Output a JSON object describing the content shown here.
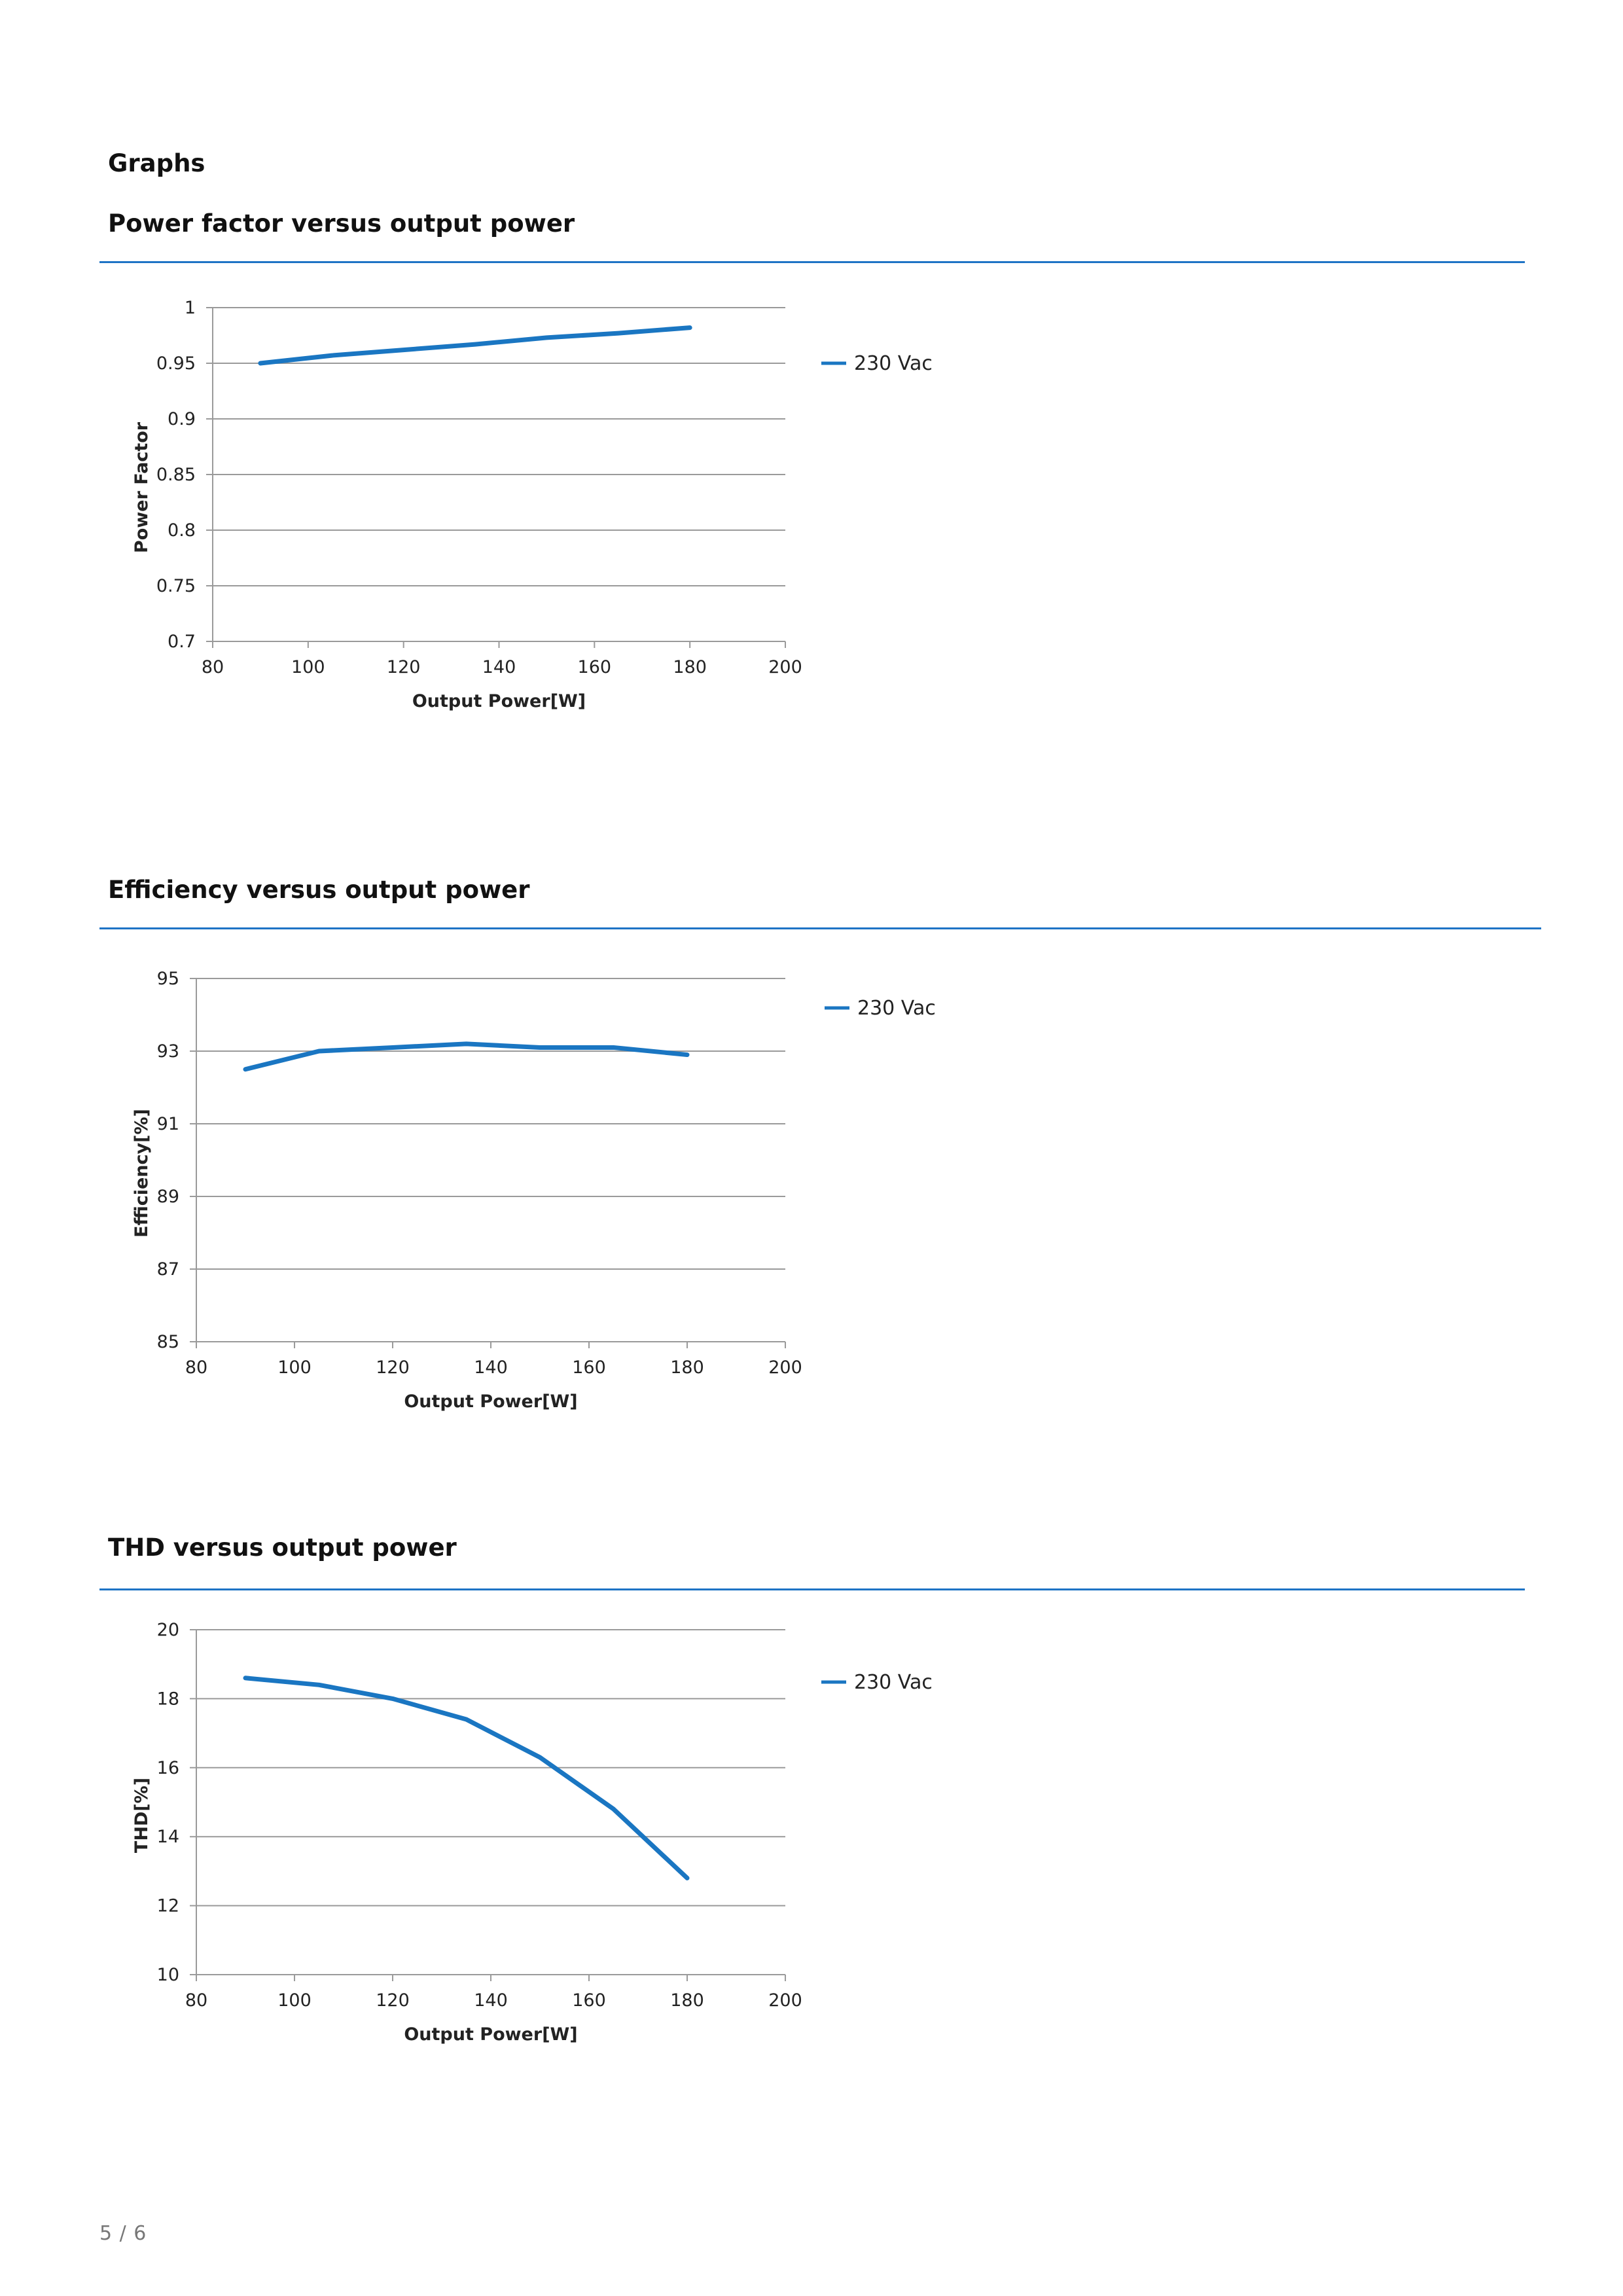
{
  "page": {
    "section_title": "Graphs",
    "page_number": "5 / 6",
    "accent_color": "#1e73c5",
    "line_color": "#1a76c2",
    "grid_color": "#9a9a9a"
  },
  "chart_data": [
    {
      "id": "pf",
      "type": "line",
      "title": "Power factor versus output power",
      "xlabel": "Output Power[W]",
      "ylabel": "Power Factor",
      "xlim": [
        80,
        200
      ],
      "ylim": [
        0.7,
        1
      ],
      "x_ticks": [
        80,
        100,
        120,
        140,
        160,
        180,
        200
      ],
      "x_tick_labels": [
        "80",
        "100",
        "120",
        "140",
        "160",
        "180",
        "200"
      ],
      "y_ticks": [
        0.7,
        0.75,
        0.8,
        0.85,
        0.9,
        0.95,
        1
      ],
      "y_tick_labels": [
        "0.7",
        "0.75",
        "0.8",
        "0.85",
        "0.9",
        "0.95",
        "1"
      ],
      "grid": true,
      "legend_position": "right",
      "series": [
        {
          "name": "230 Vac",
          "x": [
            90,
            105,
            120,
            135,
            150,
            165,
            180
          ],
          "y": [
            0.95,
            0.957,
            0.962,
            0.967,
            0.973,
            0.977,
            0.982
          ]
        }
      ]
    },
    {
      "id": "eff",
      "type": "line",
      "title": "Efficiency versus output power",
      "xlabel": "Output Power[W]",
      "ylabel": "Efficiency[%]",
      "xlim": [
        80,
        200
      ],
      "ylim": [
        85,
        95
      ],
      "x_ticks": [
        80,
        100,
        120,
        140,
        160,
        180,
        200
      ],
      "x_tick_labels": [
        "80",
        "100",
        "120",
        "140",
        "160",
        "180",
        "200"
      ],
      "y_ticks": [
        85,
        87,
        89,
        91,
        93,
        95
      ],
      "y_tick_labels": [
        "85",
        "87",
        "89",
        "91",
        "93",
        "95"
      ],
      "grid": true,
      "legend_position": "right",
      "series": [
        {
          "name": "230 Vac",
          "x": [
            90,
            105,
            120,
            135,
            150,
            165,
            180
          ],
          "y": [
            92.5,
            93.0,
            93.1,
            93.2,
            93.1,
            93.1,
            92.9
          ]
        }
      ]
    },
    {
      "id": "thd",
      "type": "line",
      "title": "THD versus output power",
      "xlabel": "Output Power[W]",
      "ylabel": "THD[%]",
      "xlim": [
        80,
        200
      ],
      "ylim": [
        10,
        20
      ],
      "x_ticks": [
        80,
        100,
        120,
        140,
        160,
        180,
        200
      ],
      "x_tick_labels": [
        "80",
        "100",
        "120",
        "140",
        "160",
        "180",
        "200"
      ],
      "y_ticks": [
        10,
        12,
        14,
        16,
        18,
        20
      ],
      "y_tick_labels": [
        "10",
        "12",
        "14",
        "16",
        "18",
        "20"
      ],
      "grid": true,
      "legend_position": "right",
      "series": [
        {
          "name": "230 Vac",
          "x": [
            90,
            105,
            120,
            135,
            150,
            165,
            180
          ],
          "y": [
            18.6,
            18.4,
            18.0,
            17.4,
            16.3,
            14.8,
            12.8
          ]
        }
      ]
    }
  ]
}
